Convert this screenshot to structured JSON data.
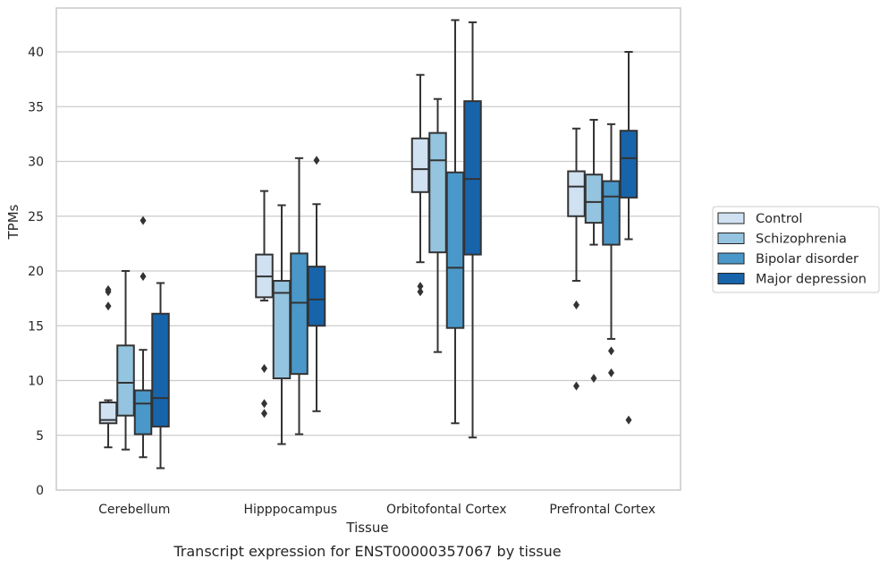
{
  "caption": "Transcript expression for ENST00000357067 by tissue",
  "chart_data": {
    "type": "box",
    "xlabel": "Tissue",
    "ylabel": "TPMs",
    "ylim": [
      0,
      44
    ],
    "yticks": [
      0,
      5,
      10,
      15,
      20,
      25,
      30,
      35,
      40
    ],
    "grid": true,
    "legend_position": "right",
    "categories": [
      "Cerebellum",
      "Hipppocampus",
      "Orbitofontal Cortex",
      "Prefrontal Cortex"
    ],
    "series": [
      {
        "name": "Control",
        "color": "#d0e1f2",
        "boxes": [
          {
            "whisker_low": 3.9,
            "q1": 6.1,
            "median": 6.4,
            "q3": 8.0,
            "whisker_high": 8.2,
            "outliers": [
              16.8,
              18.1,
              18.3
            ]
          },
          {
            "whisker_low": 17.3,
            "q1": 17.6,
            "median": 19.5,
            "q3": 21.5,
            "whisker_high": 27.3,
            "outliers": [
              7.0,
              7.9,
              11.1
            ]
          },
          {
            "whisker_low": 20.8,
            "q1": 27.2,
            "median": 29.3,
            "q3": 32.1,
            "whisker_high": 37.9,
            "outliers": [
              18.1,
              18.6
            ]
          },
          {
            "whisker_low": 19.1,
            "q1": 25.0,
            "median": 27.7,
            "q3": 29.1,
            "whisker_high": 33.0,
            "outliers": [
              9.5,
              16.9
            ]
          }
        ]
      },
      {
        "name": "Schizophrenia",
        "color": "#94c4df",
        "boxes": [
          {
            "whisker_low": 3.7,
            "q1": 6.8,
            "median": 9.8,
            "q3": 13.2,
            "whisker_high": 20.0,
            "outliers": []
          },
          {
            "whisker_low": 4.2,
            "q1": 10.2,
            "median": 18.0,
            "q3": 19.1,
            "whisker_high": 26.0,
            "outliers": []
          },
          {
            "whisker_low": 12.6,
            "q1": 21.7,
            "median": 30.1,
            "q3": 32.6,
            "whisker_high": 35.7,
            "outliers": []
          },
          {
            "whisker_low": 22.4,
            "q1": 24.4,
            "median": 26.3,
            "q3": 28.8,
            "whisker_high": 33.8,
            "outliers": [
              10.2
            ]
          }
        ]
      },
      {
        "name": "Bipolar disorder",
        "color": "#4a98c9",
        "boxes": [
          {
            "whisker_low": 3.0,
            "q1": 5.1,
            "median": 7.9,
            "q3": 9.1,
            "whisker_high": 12.8,
            "outliers": [
              19.5,
              24.6
            ]
          },
          {
            "whisker_low": 5.1,
            "q1": 10.6,
            "median": 17.1,
            "q3": 21.6,
            "whisker_high": 30.3,
            "outliers": []
          },
          {
            "whisker_low": 6.1,
            "q1": 14.8,
            "median": 20.3,
            "q3": 29.0,
            "whisker_high": 42.9,
            "outliers": []
          },
          {
            "whisker_low": 13.8,
            "q1": 22.4,
            "median": 26.8,
            "q3": 28.2,
            "whisker_high": 33.4,
            "outliers": [
              10.7,
              12.7
            ]
          }
        ]
      },
      {
        "name": "Major depression",
        "color": "#1764ab",
        "boxes": [
          {
            "whisker_low": 2.0,
            "q1": 5.8,
            "median": 8.4,
            "q3": 16.1,
            "whisker_high": 18.9,
            "outliers": []
          },
          {
            "whisker_low": 7.2,
            "q1": 15.0,
            "median": 17.4,
            "q3": 20.4,
            "whisker_high": 26.1,
            "outliers": [
              30.1
            ]
          },
          {
            "whisker_low": 4.8,
            "q1": 21.5,
            "median": 28.4,
            "q3": 35.5,
            "whisker_high": 42.7,
            "outliers": []
          },
          {
            "whisker_low": 22.9,
            "q1": 26.7,
            "median": 30.3,
            "q3": 32.8,
            "whisker_high": 40.0,
            "outliers": [
              6.4
            ]
          }
        ]
      }
    ]
  }
}
